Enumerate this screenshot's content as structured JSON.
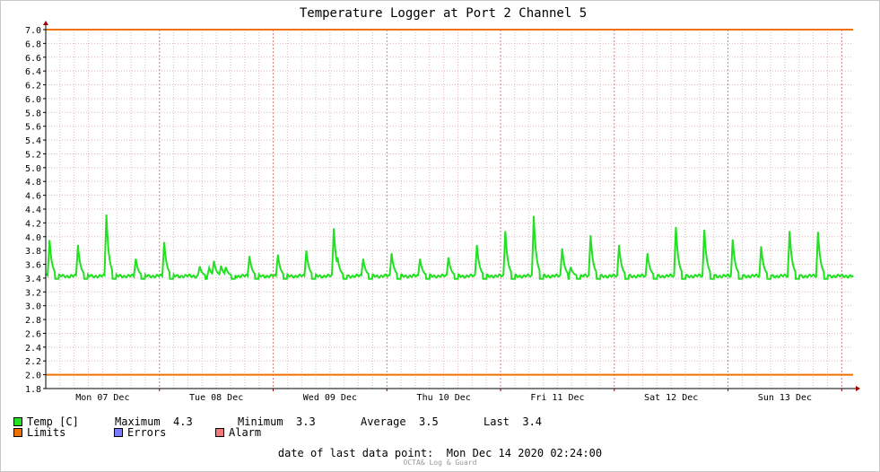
{
  "title": "Temperature Logger at Port 2 Channel 5",
  "colors": {
    "series": "#22e022",
    "limits": "#f07000",
    "errors": "#7b7bff",
    "alarm": "#f07878",
    "grid": "#e0b8b8",
    "axis": "#a00000"
  },
  "legend": {
    "temp": {
      "label": "Temp [C]",
      "color": "#22e022"
    },
    "limits": {
      "label": "Limits",
      "color": "#f07000"
    },
    "errors": {
      "label": "Errors",
      "color": "#7b7bff"
    },
    "alarm": {
      "label": "Alarm",
      "color": "#f07878"
    },
    "stats": {
      "max_label": "Maximum",
      "max_value": "4.3",
      "min_label": "Minimum",
      "min_value": "3.3",
      "avg_label": "Average",
      "avg_value": "3.5",
      "last_label": "Last",
      "last_value": "3.4"
    }
  },
  "last_point": {
    "label": "date of last data point:",
    "value": "Mon Dec 14 2020 02:24:00"
  },
  "footer": "OCTA& Log & Guard",
  "chart_data": {
    "type": "line",
    "title": "Temperature Logger at Port 2 Channel 5",
    "ylim": [
      1.8,
      7.0
    ],
    "yticks": [
      "7.0",
      "6.8",
      "6.6",
      "6.4",
      "6.2",
      "6.0",
      "5.8",
      "5.6",
      "5.4",
      "5.2",
      "5.0",
      "4.8",
      "4.6",
      "4.4",
      "4.2",
      "4.0",
      "3.8",
      "3.6",
      "3.4",
      "3.2",
      "3.0",
      "2.8",
      "2.6",
      "2.4",
      "2.2",
      "2.0",
      "1.8"
    ],
    "x_range_hours": [
      0,
      170.4
    ],
    "x_tick_labels": [
      "Mon 07 Dec",
      "Tue 08 Dec",
      "Wed 09 Dec",
      "Thu 10 Dec",
      "Fri 11 Dec",
      "Sat 12 Dec",
      "Sun 13 Dec"
    ],
    "x_tick_hours": [
      12,
      36,
      60,
      84,
      108,
      132,
      156
    ],
    "limits": {
      "upper": 7.0,
      "lower": 2.0
    },
    "baseline": 3.43,
    "series": [
      {
        "name": "Temp [C]",
        "peaks_hours": [
          0.8,
          6.8,
          12.8,
          19.0,
          25.0,
          32.5,
          34.5,
          35.5,
          37.0,
          38.0,
          43.0,
          49.0,
          55.0,
          60.8,
          61.6,
          67.0,
          73.0,
          79.0,
          85.0,
          91.0,
          97.0,
          103.0,
          109.0,
          110.8,
          115.0,
          121.0,
          127.0,
          133.0,
          139.0,
          145.0,
          151.0,
          157.0,
          163.0
        ],
        "peaks_values": [
          3.95,
          3.88,
          4.32,
          3.68,
          3.92,
          3.57,
          3.55,
          3.65,
          3.58,
          3.56,
          3.72,
          3.74,
          3.8,
          4.12,
          3.7,
          3.68,
          3.76,
          3.68,
          3.7,
          3.88,
          4.08,
          4.3,
          3.83,
          3.56,
          4.02,
          3.88,
          3.76,
          4.14,
          4.1,
          3.96,
          3.86,
          4.08,
          4.07
        ]
      }
    ],
    "grid": true
  }
}
